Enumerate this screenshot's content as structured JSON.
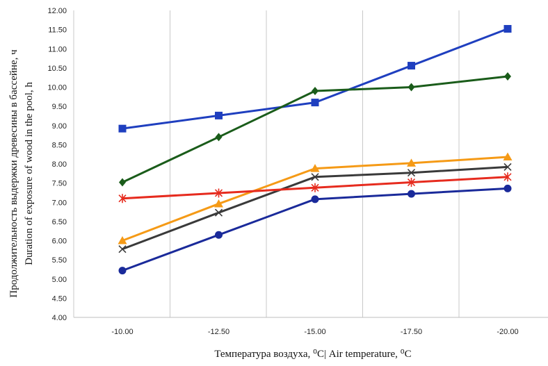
{
  "chart_data": {
    "type": "line",
    "xlabel": "Температура воздуха, ⁰С| Air temperature, ⁰C",
    "ylabel_ru": "Продолжительность выдержки древесины в бассейне, ч",
    "ylabel_en": "Duration of exposure of wood in the pool, h",
    "categories": [
      "-10.00",
      "-12.50",
      "-15.00",
      "-17.50",
      "-20.00"
    ],
    "y_ticks": [
      "4.00",
      "4.50",
      "5.00",
      "5.50",
      "6.00",
      "6.50",
      "7.00",
      "7.50",
      "8.00",
      "8.50",
      "9.00",
      "9.50",
      "10.00",
      "10.50",
      "11.00",
      "11.50",
      "12.00"
    ],
    "ylim": [
      4.0,
      12.0
    ],
    "grid": "vertical",
    "series": [
      {
        "color": "#1f3fbf",
        "marker": "square",
        "values": [
          8.92,
          9.26,
          9.6,
          10.56,
          11.52
        ]
      },
      {
        "color": "#1a5c1a",
        "marker": "diamond",
        "values": [
          7.52,
          8.7,
          9.9,
          10.0,
          10.28
        ]
      },
      {
        "color": "#f59a16",
        "marker": "triangle",
        "values": [
          6.0,
          6.96,
          7.88,
          8.02,
          8.18
        ]
      },
      {
        "color": "#3a3a3a",
        "marker": "x",
        "values": [
          5.78,
          6.73,
          7.66,
          7.77,
          7.92
        ]
      },
      {
        "color": "#e62b1e",
        "marker": "star",
        "values": [
          7.1,
          7.24,
          7.38,
          7.52,
          7.66
        ]
      },
      {
        "color": "#1a2a9a",
        "marker": "circle",
        "values": [
          5.22,
          6.15,
          7.08,
          7.22,
          7.36
        ]
      }
    ]
  }
}
